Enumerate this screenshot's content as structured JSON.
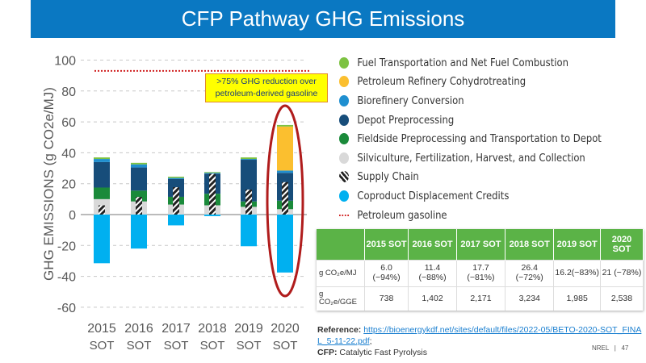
{
  "title": "CFP Pathway GHG Emissions",
  "colors": {
    "title_bar": "#0a78c2",
    "table_header": "#5bb347"
  },
  "chart_data": {
    "type": "stacked-bar",
    "title": "",
    "ylabel": "GHG EMISSIONS (g CO2e/MJ)",
    "ylim": [
      -60,
      100
    ],
    "yticks": [
      100,
      80,
      60,
      40,
      20,
      0,
      -20,
      -40,
      -60
    ],
    "categories": [
      "2015 SOT",
      "2016 SOT",
      "2017 SOT",
      "2018 SOT",
      "2019 SOT",
      "2020 SOT"
    ],
    "series": [
      {
        "name": "Silviculture, Fertilization, Harvest, and Collection",
        "color": "#d9d9d9",
        "values": [
          10,
          8.5,
          6.5,
          6,
          5,
          3.5
        ]
      },
      {
        "name": "Fieldside Preprocessing and Transportation to Depot",
        "color": "#1a8a3a",
        "values": [
          7.5,
          7,
          5,
          7.5,
          3.5,
          5.5
        ]
      },
      {
        "name": "Depot Preprocessing",
        "color": "#174d7a",
        "values": [
          16.5,
          15,
          11.5,
          13,
          27,
          18
        ]
      },
      {
        "name": "Biorefinery Conversion",
        "color": "#1f8fd0",
        "values": [
          2,
          2,
          0.7,
          0.5,
          0.5,
          1.5
        ]
      },
      {
        "name": "Petroleum Refinery Cohydrotreating",
        "color": "#fbbf2f",
        "values": [
          0,
          0,
          0,
          0,
          0,
          28.5
        ]
      },
      {
        "name": "Fuel Transportation and Net Fuel Combustion",
        "color": "#7dc242",
        "values": [
          1,
          1,
          0.8,
          0.5,
          1,
          1
        ]
      },
      {
        "name": "Coproduct Displacement Credits",
        "color": "#00b0f0",
        "values": [
          -31.5,
          -22,
          -7,
          -1,
          -20.5,
          -37.5
        ]
      }
    ],
    "supply_chain": {
      "name": "Supply Chain",
      "values": [
        6.0,
        11.4,
        17.7,
        26.4,
        16.2,
        21
      ]
    },
    "reference_line": {
      "name": "Petroleum gasoline",
      "value": 93,
      "color": "#d02020"
    },
    "annotation": [
      ">75% GHG reduction over",
      "petroleum-derived gasoline"
    ],
    "grid": true
  },
  "legend": [
    {
      "label": "Fuel Transportation and Net Fuel Combustion",
      "color": "#7dc242"
    },
    {
      "label": "Petroleum Refinery Cohydrotreating",
      "color": "#fbbf2f"
    },
    {
      "label": "Biorefinery Conversion",
      "color": "#1f8fd0"
    },
    {
      "label": "Depot Preprocessing",
      "color": "#174d7a"
    },
    {
      "label": "Fieldside Preprocessing and Transportation to Depot",
      "color": "#1a8a3a"
    },
    {
      "label": "Silviculture, Fertilization, Harvest, and Collection",
      "color": "#d9d9d9"
    },
    {
      "label": "Supply Chain",
      "color": "hatch"
    },
    {
      "label": "Coproduct Displacement Credits",
      "color": "#00b0f0"
    },
    {
      "label": "Petroleum gasoline",
      "color": "dotted"
    }
  ],
  "table": {
    "headers": [
      "",
      "2015 SOT",
      "2016 SOT",
      "2017 SOT",
      "2018 SOT",
      "2019 SOT",
      "2020 SOT"
    ],
    "rows": [
      [
        "g CO₂e/MJ",
        "6.0 (−94%)",
        "11.4 (−88%)",
        "17.7 (−81%)",
        "26.4 (−72%)",
        "16.2(−83%)",
        "21 (−78%)"
      ],
      [
        "g CO₂e/GGE",
        "738",
        "1,402",
        "2,171",
        "3,234",
        "1,985",
        "2,538"
      ]
    ]
  },
  "reference": {
    "label": "Reference:",
    "link": "https://bioenergykdf.net/sites/default/files/2022-05/BETO-2020-SOT_FINAL_5-11-22.pdf",
    "suffix": ";",
    "cfp_label": "CFP:",
    "cfp_text": "Catalytic Fast Pyrolysis"
  },
  "footer": "NREL   |   47"
}
